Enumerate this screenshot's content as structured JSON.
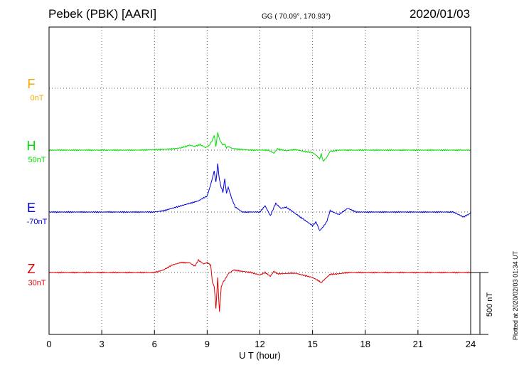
{
  "header": {
    "station": "Pebek (PBK)  [AARI]",
    "coords": "GG ( 70.09°, 170.93°)",
    "date": "2020/01/03"
  },
  "plotted_label": "Plotted at 2020/02/03 01:34 UT",
  "scale_bar": {
    "label": "500 nT",
    "value_nT": 500
  },
  "colors": {
    "F": "#f7a800",
    "H": "#00dd00",
    "E": "#0000dd",
    "Z": "#dd0000",
    "axis": "#000000"
  },
  "chart_data": {
    "type": "line",
    "title": "",
    "xlabel": "U T (hour)",
    "xlim": [
      0,
      24
    ],
    "xticks": [
      "0",
      "3",
      "6",
      "9",
      "12",
      "15",
      "18",
      "21",
      "24"
    ],
    "grid": true,
    "series": [
      {
        "name": "F",
        "baseline_label": "0nT",
        "baseline_nT": 0,
        "x": [],
        "values": []
      },
      {
        "name": "H",
        "baseline_label": "50nT",
        "baseline_nT": 50,
        "x": [
          0,
          1,
          2,
          3,
          4,
          5,
          6,
          6.5,
          7,
          7.5,
          8,
          8.3,
          8.6,
          8.9,
          9.1,
          9.3,
          9.4,
          9.5,
          9.6,
          9.7,
          9.8,
          9.9,
          10.0,
          10.1,
          10.2,
          10.4,
          10.6,
          11,
          11.5,
          12,
          12.5,
          12.8,
          13,
          13.5,
          14,
          14.5,
          15,
          15.2,
          15.4,
          15.5,
          15.6,
          15.8,
          16,
          16.5,
          17,
          18,
          19,
          20,
          21,
          22,
          23,
          24
        ],
        "values": [
          0,
          0,
          0,
          0,
          0,
          0,
          4,
          6,
          10,
          18,
          40,
          30,
          45,
          20,
          35,
          80,
          120,
          30,
          145,
          90,
          60,
          40,
          50,
          20,
          30,
          15,
          10,
          5,
          0,
          0,
          0,
          -25,
          10,
          -5,
          5,
          -10,
          -20,
          -40,
          -70,
          -30,
          -90,
          -60,
          -10,
          0,
          0,
          0,
          0,
          0,
          0,
          0,
          0,
          0
        ]
      },
      {
        "name": "E",
        "baseline_label": "-70nT",
        "baseline_nT": -70,
        "x": [
          0,
          1,
          2,
          3,
          4,
          5,
          6,
          6.5,
          7,
          7.5,
          8,
          8.5,
          9,
          9.2,
          9.4,
          9.5,
          9.6,
          9.7,
          9.8,
          9.9,
          10,
          10.1,
          10.2,
          10.4,
          10.6,
          11,
          11.5,
          12,
          12.3,
          12.6,
          12.9,
          13.2,
          13.5,
          14,
          14.5,
          15,
          15.2,
          15.4,
          15.6,
          15.8,
          16,
          16.5,
          17,
          17.5,
          18,
          19,
          20,
          21,
          22,
          23,
          23.6,
          24
        ],
        "values": [
          0,
          0,
          0,
          0,
          0,
          0,
          0,
          10,
          30,
          50,
          70,
          90,
          130,
          220,
          330,
          240,
          390,
          260,
          200,
          160,
          270,
          150,
          200,
          110,
          40,
          0,
          0,
          0,
          50,
          -30,
          70,
          30,
          40,
          -10,
          -60,
          -110,
          -80,
          -150,
          -120,
          -80,
          10,
          -20,
          30,
          0,
          0,
          0,
          0,
          0,
          0,
          0,
          -40,
          -10
        ]
      },
      {
        "name": "Z",
        "baseline_label": "30nT",
        "baseline_nT": 30,
        "x": [
          0,
          1,
          2,
          3,
          4,
          5,
          6,
          6.5,
          7,
          7.5,
          8,
          8.3,
          8.5,
          8.8,
          9,
          9.2,
          9.3,
          9.4,
          9.5,
          9.6,
          9.7,
          9.8,
          9.9,
          10,
          10.2,
          10.5,
          11,
          11.5,
          12,
          12.3,
          12.6,
          12.8,
          13,
          14,
          15,
          15.5,
          15.8,
          16,
          16.5,
          17,
          18,
          19,
          20,
          21,
          22,
          23,
          24
        ],
        "values": [
          0,
          0,
          0,
          0,
          0,
          0,
          0,
          20,
          60,
          80,
          80,
          50,
          100,
          70,
          80,
          60,
          -80,
          -110,
          -290,
          -40,
          -320,
          -120,
          -80,
          -60,
          -10,
          20,
          10,
          0,
          -20,
          0,
          -30,
          10,
          -10,
          -5,
          -40,
          -80,
          -40,
          -15,
          -10,
          0,
          0,
          0,
          0,
          0,
          0,
          0,
          0
        ]
      }
    ]
  }
}
